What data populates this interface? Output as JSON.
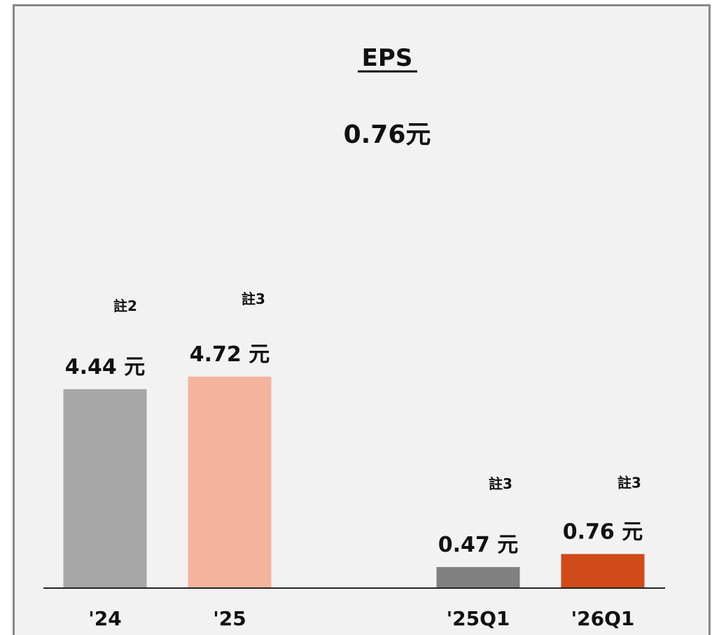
{
  "chart_data": {
    "type": "bar",
    "title": "EPS",
    "subtitle": "0.76元",
    "categories": [
      "'24",
      "'25",
      "'25Q1",
      "'26Q1"
    ],
    "values": [
      4.44,
      4.72,
      0.47,
      0.76
    ],
    "value_labels": [
      "4.44 元",
      "4.72 元",
      "0.47 元",
      "0.76 元"
    ],
    "notes": [
      "註2",
      "註3",
      "註3",
      "註3"
    ],
    "colors": [
      "#a6a6a6",
      "#f4b39d",
      "#808080",
      "#d04a1a"
    ],
    "grid": false,
    "legend": "none"
  }
}
